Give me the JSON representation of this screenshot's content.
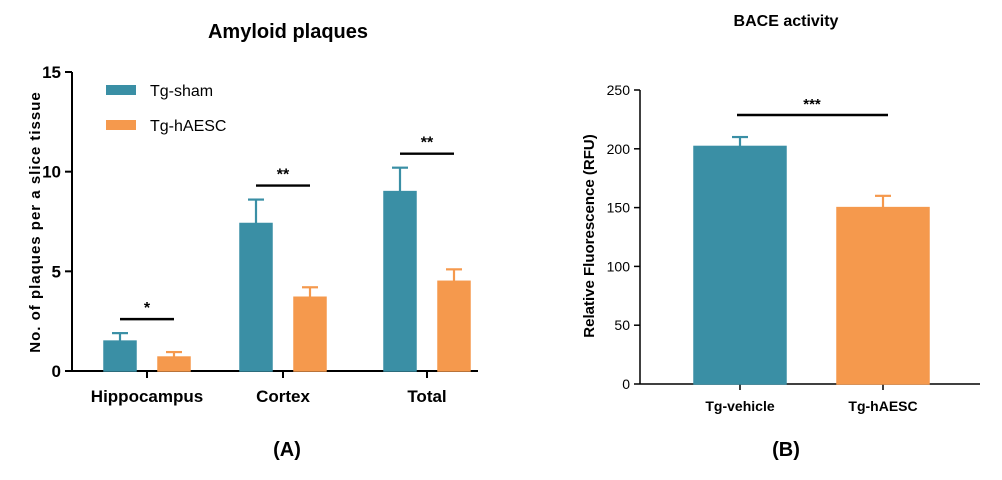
{
  "colors": {
    "sham": "#3a8fa5",
    "hAESC": "#f5994d",
    "axis": "#000000"
  },
  "chart_data": [
    {
      "type": "bar",
      "panel_label": "(A)",
      "title": "Amyloid plaques",
      "ylabel": "No. of plaques per a slice tissue",
      "xlabel": "",
      "ylim": [
        0,
        15
      ],
      "yticks": [
        "0",
        "5",
        "10",
        "15"
      ],
      "grid": false,
      "legend_position": "top-left",
      "categories": [
        "Hippocampus",
        "Cortex",
        "Total"
      ],
      "series": [
        {
          "name": "Tg-sham",
          "values": [
            1.5,
            7.4,
            9.0
          ],
          "errors": [
            0.4,
            1.2,
            1.2
          ]
        },
        {
          "name": "Tg-hAESC",
          "values": [
            0.7,
            3.7,
            4.5
          ],
          "errors": [
            0.25,
            0.5,
            0.6
          ]
        }
      ],
      "significance": [
        "*",
        "**",
        "**"
      ]
    },
    {
      "type": "bar",
      "panel_label": "(B)",
      "title": "BACE activity",
      "ylabel": "Relative Fluorescence (RFU)",
      "xlabel": "",
      "ylim": [
        0,
        250
      ],
      "yticks": [
        "0",
        "50",
        "100",
        "150",
        "200",
        "250"
      ],
      "grid": false,
      "categories": [
        "Tg-vehicle",
        "Tg-hAESC"
      ],
      "values": [
        202,
        150
      ],
      "errors": [
        8,
        10
      ],
      "significance": "***"
    }
  ]
}
